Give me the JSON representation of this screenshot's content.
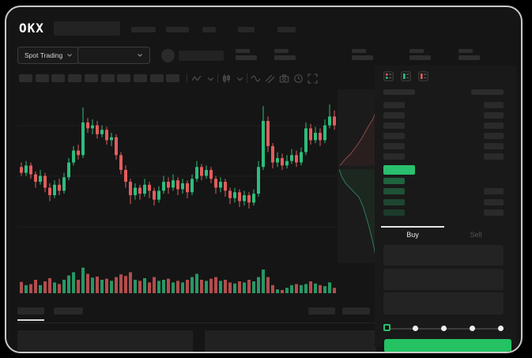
{
  "topnav": {
    "logo": "OKX",
    "nav_placeholder_count": 5
  },
  "subnav": {
    "market_selector_label": "Spot Trading",
    "stat_pair_count": 5
  },
  "chart_toolbar": {
    "interval_button_count": 10,
    "icons": [
      "zigzag-icon",
      "chevron-down-icon",
      "candle-style-icon",
      "chevron-down-icon",
      "wave-icon",
      "compare-lines-icon",
      "camera-icon",
      "clock-icon",
      "expand-icon"
    ]
  },
  "colors": {
    "candle_up": "#2ebd7c",
    "candle_down": "#e25d5d",
    "volume_up": "rgba(46,189,124,0.78)",
    "volume_down": "rgba(226,93,93,0.78)",
    "accent_green": "#24c263",
    "orderbook_price_green": "#2abf6e",
    "depth_ask_line": "#8a4a48",
    "depth_ask_fill": "rgba(136,60,56,0.14)",
    "depth_bid_line": "#2f7c57",
    "depth_bid_fill": "rgba(36,120,72,0.13)",
    "grid_line": "#1f1f1f"
  },
  "chart_data": {
    "type": "candlestick",
    "note": "normalized 0-1 price units read from pixels; no axis labels visible",
    "candles": [
      [
        0.52,
        0.48,
        0.55,
        0.46
      ],
      [
        0.48,
        0.53,
        0.56,
        0.46
      ],
      [
        0.53,
        0.47,
        0.55,
        0.44
      ],
      [
        0.47,
        0.42,
        0.49,
        0.38
      ],
      [
        0.42,
        0.46,
        0.5,
        0.4
      ],
      [
        0.46,
        0.38,
        0.48,
        0.35
      ],
      [
        0.38,
        0.33,
        0.41,
        0.29
      ],
      [
        0.33,
        0.4,
        0.43,
        0.31
      ],
      [
        0.4,
        0.36,
        0.44,
        0.33
      ],
      [
        0.36,
        0.45,
        0.48,
        0.34
      ],
      [
        0.45,
        0.55,
        0.58,
        0.43
      ],
      [
        0.55,
        0.63,
        0.66,
        0.53
      ],
      [
        0.63,
        0.6,
        0.67,
        0.57
      ],
      [
        0.6,
        0.82,
        0.92,
        0.58
      ],
      [
        0.82,
        0.78,
        0.85,
        0.75
      ],
      [
        0.78,
        0.8,
        0.84,
        0.74
      ],
      [
        0.8,
        0.74,
        0.83,
        0.71
      ],
      [
        0.74,
        0.77,
        0.8,
        0.72
      ],
      [
        0.77,
        0.7,
        0.79,
        0.67
      ],
      [
        0.7,
        0.72,
        0.75,
        0.66
      ],
      [
        0.72,
        0.6,
        0.74,
        0.57
      ],
      [
        0.6,
        0.5,
        0.62,
        0.47
      ],
      [
        0.5,
        0.42,
        0.53,
        0.38
      ],
      [
        0.42,
        0.33,
        0.44,
        0.27
      ],
      [
        0.33,
        0.38,
        0.41,
        0.3
      ],
      [
        0.38,
        0.34,
        0.4,
        0.3
      ],
      [
        0.34,
        0.4,
        0.44,
        0.32
      ],
      [
        0.4,
        0.36,
        0.42,
        0.31
      ],
      [
        0.36,
        0.3,
        0.38,
        0.26
      ],
      [
        0.3,
        0.36,
        0.39,
        0.28
      ],
      [
        0.36,
        0.42,
        0.46,
        0.34
      ],
      [
        0.42,
        0.38,
        0.45,
        0.34
      ],
      [
        0.38,
        0.43,
        0.47,
        0.36
      ],
      [
        0.43,
        0.37,
        0.45,
        0.33
      ],
      [
        0.37,
        0.41,
        0.44,
        0.34
      ],
      [
        0.41,
        0.35,
        0.43,
        0.31
      ],
      [
        0.35,
        0.44,
        0.47,
        0.33
      ],
      [
        0.44,
        0.52,
        0.56,
        0.42
      ],
      [
        0.52,
        0.46,
        0.54,
        0.43
      ],
      [
        0.46,
        0.5,
        0.53,
        0.44
      ],
      [
        0.5,
        0.44,
        0.52,
        0.41
      ],
      [
        0.44,
        0.38,
        0.46,
        0.34
      ],
      [
        0.38,
        0.42,
        0.45,
        0.35
      ],
      [
        0.42,
        0.36,
        0.44,
        0.32
      ],
      [
        0.36,
        0.31,
        0.38,
        0.27
      ],
      [
        0.31,
        0.35,
        0.38,
        0.28
      ],
      [
        0.35,
        0.29,
        0.37,
        0.25
      ],
      [
        0.29,
        0.33,
        0.36,
        0.26
      ],
      [
        0.33,
        0.28,
        0.35,
        0.24
      ],
      [
        0.28,
        0.34,
        0.37,
        0.26
      ],
      [
        0.34,
        0.52,
        0.56,
        0.32
      ],
      [
        0.52,
        0.83,
        0.93,
        0.5
      ],
      [
        0.83,
        0.66,
        0.86,
        0.62
      ],
      [
        0.66,
        0.55,
        0.68,
        0.51
      ],
      [
        0.55,
        0.58,
        0.62,
        0.52
      ],
      [
        0.58,
        0.53,
        0.61,
        0.5
      ],
      [
        0.53,
        0.56,
        0.6,
        0.51
      ],
      [
        0.56,
        0.6,
        0.64,
        0.54
      ],
      [
        0.6,
        0.55,
        0.63,
        0.52
      ],
      [
        0.55,
        0.62,
        0.65,
        0.53
      ],
      [
        0.62,
        0.78,
        0.82,
        0.6
      ],
      [
        0.78,
        0.7,
        0.81,
        0.67
      ],
      [
        0.7,
        0.75,
        0.79,
        0.68
      ],
      [
        0.75,
        0.7,
        0.78,
        0.66
      ],
      [
        0.7,
        0.8,
        0.84,
        0.68
      ],
      [
        0.8,
        0.86,
        0.94,
        0.78
      ],
      [
        0.86,
        0.8,
        0.9,
        0.77
      ]
    ],
    "volumes": [
      0.42,
      0.3,
      0.34,
      0.5,
      0.3,
      0.44,
      0.56,
      0.4,
      0.34,
      0.5,
      0.66,
      0.78,
      0.5,
      0.95,
      0.72,
      0.58,
      0.62,
      0.5,
      0.54,
      0.46,
      0.6,
      0.7,
      0.64,
      0.78,
      0.5,
      0.46,
      0.56,
      0.4,
      0.6,
      0.46,
      0.5,
      0.54,
      0.4,
      0.46,
      0.4,
      0.5,
      0.6,
      0.72,
      0.5,
      0.46,
      0.54,
      0.6,
      0.46,
      0.5,
      0.4,
      0.36,
      0.44,
      0.4,
      0.5,
      0.44,
      0.6,
      0.88,
      0.6,
      0.3,
      0.14,
      0.12,
      0.2,
      0.3,
      0.34,
      0.3,
      0.34,
      0.44,
      0.36,
      0.3,
      0.26,
      0.4,
      0.2
    ],
    "depth": {
      "asks": [
        [
          1,
          0.02
        ],
        [
          0.93,
          0.07
        ],
        [
          0.88,
          0.12
        ],
        [
          0.8,
          0.17
        ],
        [
          0.68,
          0.22
        ],
        [
          0.55,
          0.28
        ],
        [
          0.42,
          0.33
        ],
        [
          0.3,
          0.37
        ],
        [
          0.18,
          0.4
        ],
        [
          0.08,
          0.43
        ],
        [
          0.05,
          0.44
        ]
      ],
      "bids": [
        [
          0.04,
          0.46
        ],
        [
          0.09,
          0.5
        ],
        [
          0.18,
          0.54
        ],
        [
          0.33,
          0.58
        ],
        [
          0.48,
          0.62
        ],
        [
          0.57,
          0.67
        ],
        [
          0.63,
          0.72
        ],
        [
          0.7,
          0.78
        ],
        [
          0.78,
          0.86
        ],
        [
          0.84,
          0.93
        ],
        [
          0.87,
          1.0
        ]
      ],
      "markers": [
        {
          "name": "last-price-tick",
          "color": "#2abf6e",
          "y": 0.47
        },
        {
          "name": "mark-price-tick",
          "color": "#dddddd",
          "y": 0.76
        }
      ]
    }
  },
  "orderbook": {
    "view_icons": [
      "book-split-view-icon",
      "book-bids-view-icon",
      "book-asks-view-icon"
    ],
    "asks_rows": 6,
    "bids": [
      {
        "intensity": 0.45,
        "has_amount": false
      },
      {
        "intensity": 0.34,
        "has_amount": true
      },
      {
        "intensity": 0.27,
        "has_amount": true
      },
      {
        "intensity": 0.21,
        "has_amount": true
      }
    ],
    "last_price_direction": "up"
  },
  "trade_panel": {
    "tabs": [
      {
        "label": "Buy",
        "active": true
      },
      {
        "label": "Sell",
        "active": false
      }
    ],
    "input_rows": 3,
    "slider": {
      "stops": 5,
      "active_stop": 0
    },
    "submit_button_label": ""
  },
  "bottom_panel": {
    "tab_count": 2,
    "active_tab_index": 0,
    "right_control_count": 2,
    "content_panel_count": 2
  }
}
